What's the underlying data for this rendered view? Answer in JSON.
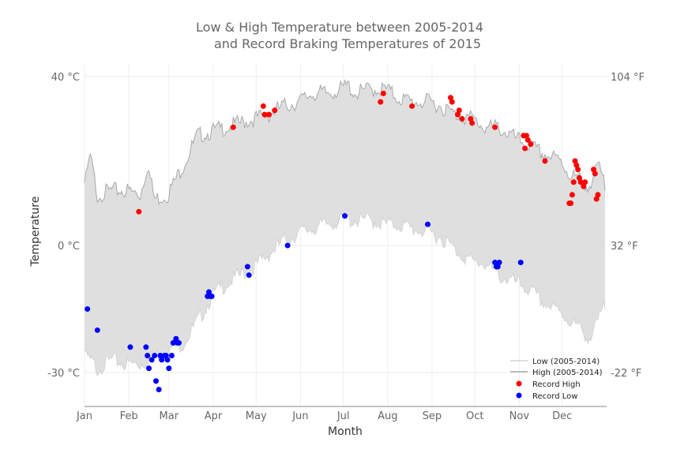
{
  "chart_data": {
    "type": "area",
    "title": [
      "Low & High Temperature between 2005-2014",
      "and Record Braking Temperatures of 2015"
    ],
    "xlabel": "Month",
    "ylabel": "Temperature",
    "x_ticks": [
      "Jan",
      "Feb",
      "Mar",
      "Apr",
      "May",
      "Jun",
      "Jul",
      "Aug",
      "Sep",
      "Oct",
      "Nov",
      "Dec"
    ],
    "x_tick_days": [
      1,
      32,
      60,
      91,
      121,
      152,
      182,
      213,
      244,
      274,
      305,
      335
    ],
    "y_ticks_left": [
      "40 °C",
      "0 °C",
      "-30 °C"
    ],
    "y_tick_values": [
      40,
      0,
      -30
    ],
    "y_ticks_right": [
      "104 °F",
      "32 °F",
      "-22 °F"
    ],
    "xlim": [
      1,
      365
    ],
    "ylim": [
      -38,
      44
    ],
    "grid": true,
    "legend_position": "lower-right",
    "colors": {
      "band": "#dfdfdf",
      "low_line": "#d3d3d3",
      "high_line": "#a9a9a9",
      "record_high": "#ff0000",
      "record_low": "#0000ff"
    },
    "series": [
      {
        "name": "Low (2005-2014)",
        "x": [
          1,
          10,
          20,
          31,
          40,
          50,
          59,
          70,
          80,
          90,
          100,
          110,
          120,
          130,
          140,
          151,
          160,
          170,
          181,
          190,
          200,
          212,
          220,
          230,
          243,
          250,
          260,
          273,
          280,
          290,
          304,
          310,
          320,
          334,
          345,
          355,
          365
        ],
        "y": [
          -26,
          -29,
          -27,
          -28,
          -28,
          -26,
          -25,
          -23,
          -18,
          -12,
          -9,
          -7,
          -5,
          -2,
          1,
          3,
          4,
          5,
          6,
          6,
          6,
          5,
          5,
          4,
          3,
          2,
          -1,
          -4,
          -4,
          -7,
          -9,
          -10,
          -13,
          -16,
          -19,
          -22,
          -14
        ]
      },
      {
        "name": "High (2005-2014)",
        "x": [
          1,
          5,
          10,
          20,
          31,
          40,
          45,
          50,
          59,
          70,
          80,
          90,
          100,
          110,
          120,
          130,
          140,
          151,
          160,
          170,
          181,
          185,
          190,
          200,
          212,
          220,
          230,
          243,
          250,
          260,
          273,
          280,
          290,
          304,
          310,
          320,
          334,
          340,
          345,
          350,
          355,
          360,
          365
        ],
        "y": [
          14,
          21,
          12,
          13,
          13,
          12,
          19,
          11,
          12,
          19,
          26,
          27,
          28,
          29,
          30,
          31,
          33,
          34,
          36,
          36,
          37,
          38,
          36,
          37,
          37,
          35,
          34,
          34,
          33,
          31,
          30,
          28,
          28,
          25,
          24,
          22,
          20,
          17,
          16,
          15,
          14,
          19,
          14
        ]
      },
      {
        "name": "Record High",
        "x": [
          39,
          105,
          126,
          127,
          130,
          134,
          208,
          210,
          230,
          257,
          258,
          262,
          263,
          265,
          271,
          272,
          288,
          308,
          309,
          310,
          311,
          313,
          323,
          340,
          341,
          342,
          343,
          344,
          345,
          346,
          347,
          348,
          350,
          351,
          357,
          358,
          359,
          360
        ],
        "y": [
          8,
          28,
          33,
          31,
          31,
          32,
          34,
          36,
          33,
          35,
          34,
          31,
          32,
          30,
          30,
          29,
          28,
          26,
          23,
          26,
          25,
          24,
          20,
          10,
          10,
          12,
          15,
          20,
          19,
          18,
          16,
          15,
          14,
          15,
          18,
          17,
          11,
          12
        ]
      },
      {
        "name": "Record Low",
        "x": [
          3,
          10,
          33,
          44,
          45,
          46,
          48,
          50,
          51,
          53,
          54,
          55,
          57,
          58,
          59,
          60,
          62,
          63,
          65,
          66,
          67,
          87,
          88,
          89,
          90,
          115,
          116,
          143,
          183,
          241,
          288,
          289,
          290,
          291,
          306
        ],
        "y": [
          -15,
          -20,
          -24,
          -24,
          -26,
          -29,
          -27,
          -26,
          -32,
          -34,
          -26,
          -27,
          -26,
          -26,
          -27,
          -29,
          -26,
          -23,
          -22,
          -23,
          -23,
          -12,
          -11,
          -12,
          -12,
          -5,
          -7,
          0,
          7,
          5,
          -4,
          -5,
          -5,
          -4,
          -4
        ]
      }
    ]
  }
}
